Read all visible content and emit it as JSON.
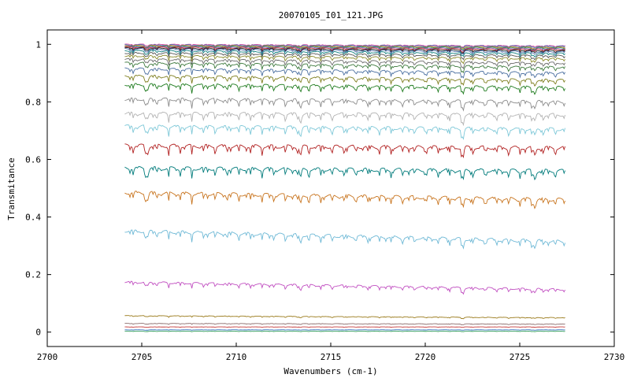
{
  "chart_data": {
    "type": "line",
    "title": "20070105_I01_121.JPG",
    "xlabel": "Wavenumbers (cm-1)",
    "ylabel": "Transmitance",
    "xlim": [
      2700,
      2730
    ],
    "ylim": [
      -0.05,
      1.05
    ],
    "x_ticks": [
      "2700",
      "2705",
      "2710",
      "2715",
      "2720",
      "2725",
      "2730"
    ],
    "y_ticks": [
      "0",
      "0.2",
      "0.4",
      "0.6",
      "0.8",
      "1"
    ],
    "grid": false,
    "legend": "none",
    "x_range": [
      2704.1,
      2727.4
    ],
    "series": [
      {
        "start": 1.0,
        "end": 0.995,
        "amp": 0.004,
        "color": "#d94f9c"
      },
      {
        "start": 0.998,
        "end": 0.993,
        "amp": 0.005,
        "color": "#3a78c2"
      },
      {
        "start": 0.996,
        "end": 0.99,
        "amp": 0.005,
        "color": "#e07a2d"
      },
      {
        "start": 0.994,
        "end": 0.988,
        "amp": 0.006,
        "color": "#2b9a54"
      },
      {
        "start": 0.992,
        "end": 0.985,
        "amp": 0.006,
        "color": "#7a4fb0"
      },
      {
        "start": 0.99,
        "end": 0.982,
        "amp": 0.007,
        "color": "#c43b3b"
      },
      {
        "start": 0.987,
        "end": 0.978,
        "amp": 0.007,
        "color": "#1a1a1a"
      },
      {
        "start": 0.984,
        "end": 0.974,
        "amp": 0.008,
        "color": "#4c6aa8"
      },
      {
        "start": 0.978,
        "end": 0.968,
        "amp": 0.009,
        "color": "#0f7f7f"
      },
      {
        "start": 0.97,
        "end": 0.96,
        "amp": 0.01,
        "color": "#555555"
      },
      {
        "start": 0.96,
        "end": 0.95,
        "amp": 0.011,
        "color": "#8a8a2a"
      },
      {
        "start": 0.948,
        "end": 0.935,
        "amp": 0.012,
        "color": "#6b6b6b"
      },
      {
        "start": 0.935,
        "end": 0.92,
        "amp": 0.013,
        "color": "#3d7a3d"
      },
      {
        "start": 0.915,
        "end": 0.9,
        "amp": 0.014,
        "color": "#4a6fa0"
      },
      {
        "start": 0.89,
        "end": 0.875,
        "amp": 0.015,
        "color": "#7f7f1f"
      },
      {
        "start": 0.86,
        "end": 0.85,
        "amp": 0.017,
        "color": "#1e7b1e"
      },
      {
        "start": 0.81,
        "end": 0.8,
        "amp": 0.019,
        "color": "#8c8c8c"
      },
      {
        "start": 0.76,
        "end": 0.755,
        "amp": 0.02,
        "color": "#b3b3b3"
      },
      {
        "start": 0.715,
        "end": 0.705,
        "amp": 0.021,
        "color": "#7ec8d8"
      },
      {
        "start": 0.648,
        "end": 0.64,
        "amp": 0.023,
        "color": "#b22222"
      },
      {
        "start": 0.57,
        "end": 0.56,
        "amp": 0.023,
        "color": "#007b7b"
      },
      {
        "start": 0.485,
        "end": 0.46,
        "amp": 0.022,
        "color": "#c8741e"
      },
      {
        "start": 0.352,
        "end": 0.315,
        "amp": 0.02,
        "color": "#6fb9d6"
      },
      {
        "start": 0.174,
        "end": 0.148,
        "amp": 0.012,
        "color": "#c14fc1"
      },
      {
        "start": 0.057,
        "end": 0.05,
        "amp": 0.003,
        "color": "#9a7a1a"
      },
      {
        "start": 0.03,
        "end": 0.028,
        "amp": 0.002,
        "color": "#8b6b6b"
      },
      {
        "start": 0.018,
        "end": 0.018,
        "amp": 0.001,
        "color": "#c43b3b"
      },
      {
        "start": 0.008,
        "end": 0.008,
        "amp": 0.001,
        "color": "#3a78c2"
      },
      {
        "start": 0.003,
        "end": 0.003,
        "amp": 0.001,
        "color": "#2b9a54"
      }
    ]
  }
}
